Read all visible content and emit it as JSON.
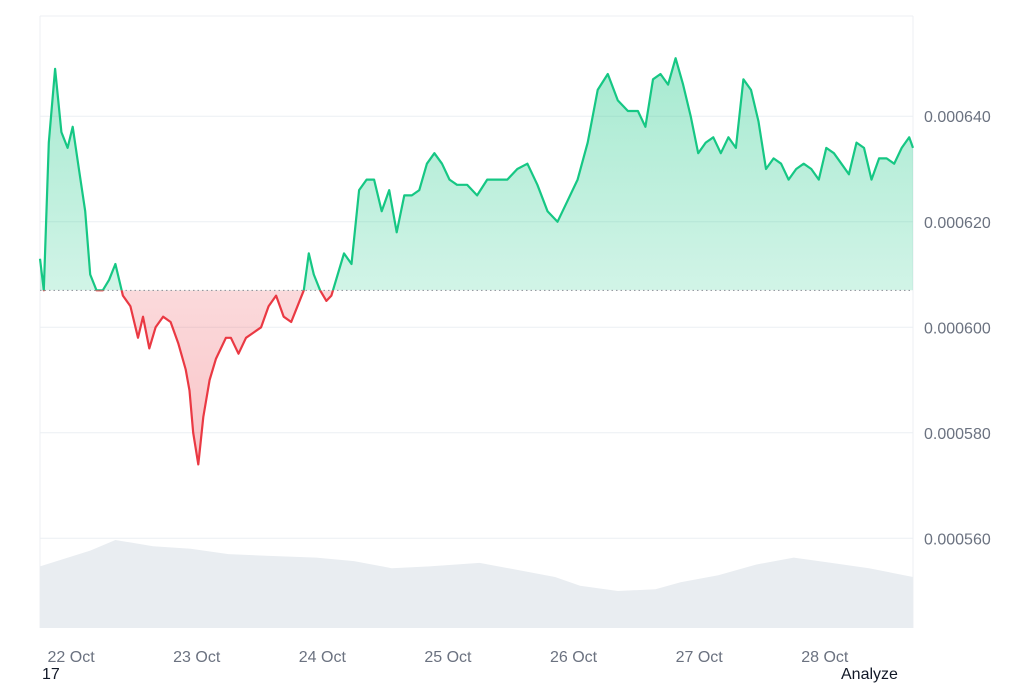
{
  "chart_data": {
    "type": "area",
    "baseline": 0.000607,
    "yticks": [
      0.00056,
      0.00058,
      0.0006,
      0.00062,
      0.00064
    ],
    "ytick_labels": [
      "0.000560",
      "0.000580",
      "0.000600",
      "0.000620",
      "0.000640"
    ],
    "ylim": [
      0.000543,
      0.000659
    ],
    "xlim": [
      0,
      6.95
    ],
    "x_tick_positions": [
      0.06,
      1.06,
      2.06,
      3.06,
      4.06,
      5.06,
      6.06
    ],
    "categories": [
      "22 Oct",
      "23 Oct",
      "24 Oct",
      "25 Oct",
      "26 Oct",
      "27 Oct",
      "28 Oct"
    ],
    "colors": {
      "up": "#16c784",
      "down": "#ea3943",
      "volume": "#e9edf1",
      "grid": "#eceff3"
    },
    "series": [
      {
        "x": [
          0.0,
          0.03,
          0.07,
          0.12,
          0.17,
          0.22,
          0.26,
          0.31,
          0.36,
          0.4,
          0.45,
          0.5,
          0.55,
          0.6,
          0.66,
          0.72,
          0.78,
          0.82,
          0.87,
          0.92,
          0.98,
          1.04,
          1.1,
          1.16,
          1.19,
          1.22,
          1.26,
          1.3,
          1.35,
          1.4,
          1.44,
          1.48,
          1.52,
          1.58,
          1.64,
          1.7,
          1.76,
          1.82,
          1.88,
          1.94,
          2.0,
          2.05,
          2.1,
          2.14,
          2.18,
          2.23,
          2.28,
          2.32,
          2.37,
          2.42,
          2.48,
          2.54,
          2.6,
          2.66,
          2.72,
          2.78,
          2.84,
          2.9,
          2.96,
          3.02,
          3.08,
          3.14,
          3.2,
          3.26,
          3.32,
          3.4,
          3.48,
          3.56,
          3.64,
          3.72,
          3.8,
          3.88,
          3.96,
          4.04,
          4.12,
          4.2,
          4.28,
          4.36,
          4.44,
          4.52,
          4.6,
          4.68,
          4.76,
          4.82,
          4.88,
          4.94,
          5.0,
          5.06,
          5.12,
          5.18,
          5.24,
          5.3,
          5.36,
          5.42,
          5.48,
          5.54,
          5.6,
          5.66,
          5.72,
          5.78,
          5.84,
          5.9,
          5.96,
          6.02,
          6.08,
          6.14,
          6.2,
          6.26,
          6.32,
          6.38,
          6.44,
          6.5,
          6.56,
          6.62,
          6.68,
          6.74,
          6.8,
          6.86,
          6.92,
          6.95
        ],
        "y": [
          0.000613,
          0.000607,
          0.000635,
          0.000649,
          0.000637,
          0.000634,
          0.000638,
          0.00063,
          0.000622,
          0.00061,
          0.000607,
          0.000607,
          0.000609,
          0.000612,
          0.000606,
          0.000604,
          0.000598,
          0.000602,
          0.000596,
          0.0006,
          0.000602,
          0.000601,
          0.000597,
          0.000592,
          0.000588,
          0.00058,
          0.000574,
          0.000583,
          0.00059,
          0.000594,
          0.000596,
          0.000598,
          0.000598,
          0.000595,
          0.000598,
          0.000599,
          0.0006,
          0.000604,
          0.000606,
          0.000602,
          0.000601,
          0.000604,
          0.000607,
          0.000614,
          0.00061,
          0.000607,
          0.000605,
          0.000606,
          0.00061,
          0.000614,
          0.000612,
          0.000626,
          0.000628,
          0.000628,
          0.000622,
          0.000626,
          0.000618,
          0.000625,
          0.000625,
          0.000626,
          0.000631,
          0.000633,
          0.000631,
          0.000628,
          0.000627,
          0.000627,
          0.000625,
          0.000628,
          0.000628,
          0.000628,
          0.00063,
          0.000631,
          0.000627,
          0.000622,
          0.00062,
          0.000624,
          0.000628,
          0.000635,
          0.000645,
          0.000648,
          0.000643,
          0.000641,
          0.000641,
          0.000638,
          0.000647,
          0.000648,
          0.000646,
          0.000651,
          0.000646,
          0.00064,
          0.000633,
          0.000635,
          0.000636,
          0.000633,
          0.000636,
          0.000634,
          0.000647,
          0.000645,
          0.000639,
          0.00063,
          0.000632,
          0.000631,
          0.000628,
          0.00063,
          0.000631,
          0.00063,
          0.000628,
          0.000634,
          0.000633,
          0.000631,
          0.000629,
          0.000635,
          0.000634,
          0.000628,
          0.000632,
          0.000632,
          0.000631,
          0.000634,
          0.000636,
          0.000634
        ]
      }
    ],
    "volume": {
      "x": [
        0.0,
        0.4,
        0.6,
        0.9,
        1.2,
        1.5,
        1.8,
        2.2,
        2.5,
        2.8,
        3.1,
        3.5,
        3.8,
        4.1,
        4.3,
        4.6,
        4.9,
        5.1,
        5.4,
        5.7,
        6.0,
        6.3,
        6.6,
        6.95
      ],
      "v": [
        0.7,
        0.88,
        1.0,
        0.93,
        0.9,
        0.84,
        0.82,
        0.8,
        0.76,
        0.68,
        0.7,
        0.74,
        0.66,
        0.58,
        0.48,
        0.42,
        0.44,
        0.52,
        0.6,
        0.72,
        0.8,
        0.74,
        0.68,
        0.58
      ]
    }
  },
  "footer": {
    "left_text": "17",
    "right_text": "Analyze"
  }
}
